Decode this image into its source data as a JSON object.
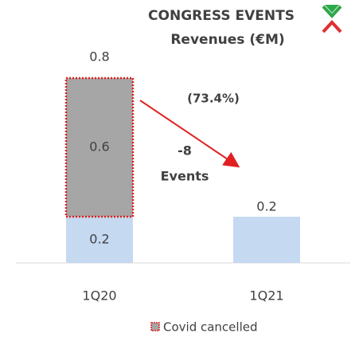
{
  "chart_data": {
    "type": "bar",
    "stacked": true,
    "title": "CONGRESS EVENTS",
    "subtitle": "Revenues (€M)",
    "categories": [
      "1Q20",
      "1Q21"
    ],
    "series": [
      {
        "color": "#c5d9f1",
        "values": [
          0.2,
          0.2
        ]
      },
      {
        "name": "Covid cancelled",
        "color": "#a6a6a6",
        "border": "#e02020",
        "values": [
          0.6,
          null
        ]
      }
    ],
    "totals": [
      0.8,
      null
    ],
    "ylim": [
      0,
      1
    ],
    "annotations": [
      "(73.4%)",
      "-8",
      "Events"
    ]
  }
}
